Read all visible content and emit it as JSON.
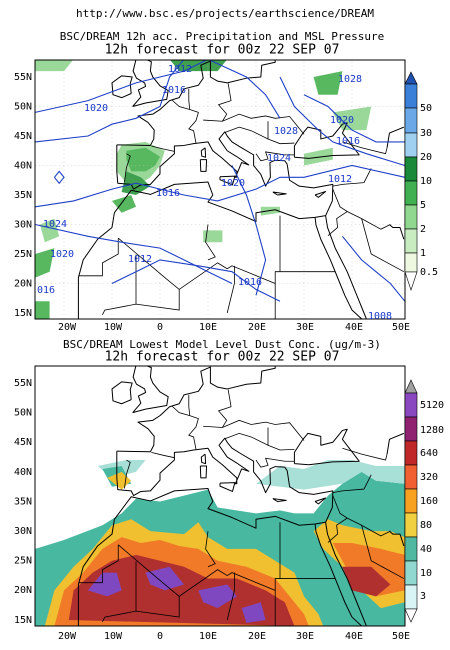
{
  "header": {
    "url": "http://www.bsc.es/projects/earthscience/DREAM"
  },
  "panels": [
    {
      "title": "BSC/DREAM 12h acc. Precipitation and MSL Pressure",
      "subtitle": "12h forecast for 00z 22 SEP 07",
      "lat_labels": [
        "55N",
        "50N",
        "45N",
        "40N",
        "35N",
        "30N",
        "25N",
        "20N",
        "15N"
      ],
      "lon_labels": [
        "20W",
        "10W",
        "0",
        "10E",
        "20E",
        "30E",
        "40E",
        "50E"
      ],
      "colorbar_labels": [
        "50",
        "30",
        "20",
        "10",
        "5",
        "2",
        "1",
        "0.5"
      ],
      "isobar_labels": [
        "1012",
        "1016",
        "1020",
        "1028",
        "1020",
        "1028",
        "1016",
        "1024",
        "1020",
        "1012",
        "1016",
        "1024",
        "1020",
        "1012",
        "1016",
        "016",
        "1008"
      ]
    },
    {
      "title": "BSC/DREAM Lowest Model Level Dust Conc. (ug/m-3)",
      "subtitle": "12h forecast for 00z 22 SEP 07",
      "lat_labels": [
        "55N",
        "50N",
        "45N",
        "40N",
        "35N",
        "30N",
        "25N",
        "20N",
        "15N"
      ],
      "lon_labels": [
        "20W",
        "10W",
        "0",
        "10E",
        "20E",
        "30E",
        "40E",
        "50E"
      ],
      "colorbar_labels": [
        "5120",
        "1280",
        "640",
        "320",
        "160",
        "80",
        "40",
        "10",
        "3"
      ]
    }
  ]
}
